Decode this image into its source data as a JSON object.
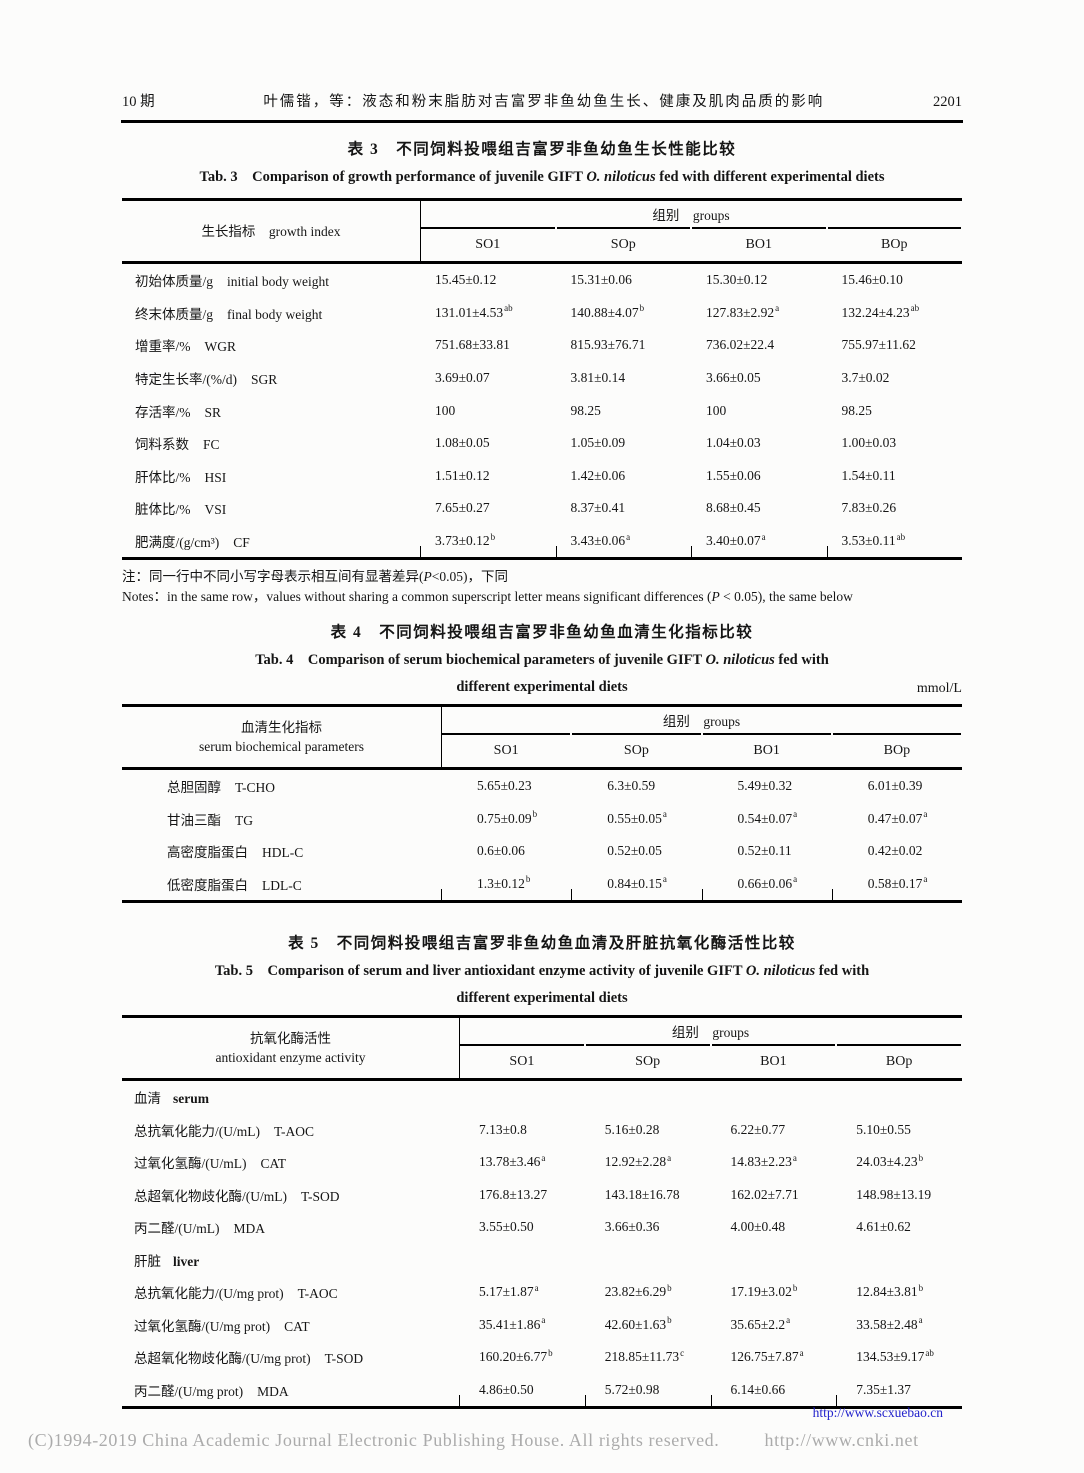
{
  "page_header": {
    "issue": "10 期",
    "title": "叶儒锴，等：液态和粉末脂肪对吉富罗非鱼幼鱼生长、健康及肌肉品质的影响",
    "page_no": "2201"
  },
  "tables": [
    {
      "title_zh": "表 3　不同饲料投喂组吉富罗非鱼幼鱼生长性能比较",
      "title_en_lines": [
        [
          {
            "t": "Tab. 3　Comparison of growth performance of juvenile GIFT "
          },
          {
            "t": "O. niloticus",
            "i": 1
          },
          {
            "t": " fed with different experimental diets"
          }
        ]
      ],
      "unit": "",
      "stub_lines": [
        "生长指标　growth index"
      ],
      "groups_label": "组别　groups",
      "columns": [
        "SO1",
        "SOp",
        "BO1",
        "BOp"
      ],
      "rows": [
        {
          "zh": "初始体质量/g",
          "en": "initial body weight",
          "cells": [
            {
              "v": "15.45±0.12"
            },
            {
              "v": "15.31±0.06"
            },
            {
              "v": "15.30±0.12"
            },
            {
              "v": "15.46±0.10"
            }
          ]
        },
        {
          "zh": "终末体质量/g",
          "en": "final body weight",
          "cells": [
            {
              "v": "131.01±4.53",
              "s": "ab"
            },
            {
              "v": "140.88±4.07",
              "s": "b"
            },
            {
              "v": "127.83±2.92",
              "s": "a"
            },
            {
              "v": "132.24±4.23",
              "s": "ab"
            }
          ]
        },
        {
          "zh": "增重率/%",
          "en": "WGR",
          "cells": [
            {
              "v": "751.68±33.81"
            },
            {
              "v": "815.93±76.71"
            },
            {
              "v": "736.02±22.4"
            },
            {
              "v": "755.97±11.62"
            }
          ]
        },
        {
          "zh": "特定生长率/(%/d)",
          "en": "SGR",
          "cells": [
            {
              "v": "3.69±0.07"
            },
            {
              "v": "3.81±0.14"
            },
            {
              "v": "3.66±0.05"
            },
            {
              "v": "3.7±0.02"
            }
          ]
        },
        {
          "zh": "存活率/%",
          "en": "SR",
          "cells": [
            {
              "v": "100"
            },
            {
              "v": "98.25"
            },
            {
              "v": "100"
            },
            {
              "v": "98.25"
            }
          ]
        },
        {
          "zh": "饲料系数",
          "en": "FC",
          "cells": [
            {
              "v": "1.08±0.05"
            },
            {
              "v": "1.05±0.09"
            },
            {
              "v": "1.04±0.03"
            },
            {
              "v": "1.00±0.03"
            }
          ]
        },
        {
          "zh": "肝体比/%",
          "en": "HSI",
          "cells": [
            {
              "v": "1.51±0.12"
            },
            {
              "v": "1.42±0.06"
            },
            {
              "v": "1.55±0.06"
            },
            {
              "v": "1.54±0.11"
            }
          ]
        },
        {
          "zh": "脏体比/%",
          "en": "VSI",
          "cells": [
            {
              "v": "7.65±0.27"
            },
            {
              "v": "8.37±0.41"
            },
            {
              "v": "8.68±0.45"
            },
            {
              "v": "7.83±0.26"
            }
          ]
        },
        {
          "zh": "肥满度/(g/cm³)",
          "en": "CF",
          "cells": [
            {
              "v": "3.73±0.12",
              "s": "b"
            },
            {
              "v": "3.43±0.06",
              "s": "a"
            },
            {
              "v": "3.40±0.07",
              "s": "a"
            },
            {
              "v": "3.53±0.11",
              "s": "ab"
            }
          ]
        }
      ],
      "notes": [
        [
          {
            "t": "注：同一行中不同小写字母表示相互间有显著差异("
          },
          {
            "t": "P",
            "i": 1
          },
          {
            "t": "<0.05)，下同"
          }
        ],
        [
          {
            "t": "Notes：in the same row，values without sharing a common superscript letter means significant differences ("
          },
          {
            "t": "P",
            "i": 1
          },
          {
            "t": " < 0.05), the same below"
          }
        ]
      ]
    },
    {
      "title_zh": "表 4　不同饲料投喂组吉富罗非鱼幼鱼血清生化指标比较",
      "title_en_lines": [
        [
          {
            "t": "Tab. 4　Comparison of serum biochemical parameters of juvenile GIFT "
          },
          {
            "t": "O. niloticus",
            "i": 1
          },
          {
            "t": " fed with"
          }
        ],
        [
          {
            "t": "different experimental diets"
          }
        ]
      ],
      "unit": "mmol/L",
      "stub_lines": [
        "血清生化指标",
        "serum biochemical parameters"
      ],
      "groups_label": "组别　groups",
      "columns": [
        "SO1",
        "SOp",
        "BO1",
        "BOp"
      ],
      "rows": [
        {
          "zh": "总胆固醇",
          "en": "T-CHO",
          "cells": [
            {
              "v": "5.65±0.23"
            },
            {
              "v": "6.3±0.59"
            },
            {
              "v": "5.49±0.32"
            },
            {
              "v": "6.01±0.39"
            }
          ]
        },
        {
          "zh": "甘油三酯",
          "en": "TG",
          "cells": [
            {
              "v": "0.75±0.09",
              "s": "b"
            },
            {
              "v": "0.55±0.05",
              "s": "a"
            },
            {
              "v": "0.54±0.07",
              "s": "a"
            },
            {
              "v": "0.47±0.07",
              "s": "a"
            }
          ]
        },
        {
          "zh": "高密度脂蛋白",
          "en": "HDL-C",
          "cells": [
            {
              "v": "0.6±0.06"
            },
            {
              "v": "0.52±0.05"
            },
            {
              "v": "0.52±0.11"
            },
            {
              "v": "0.42±0.02"
            }
          ]
        },
        {
          "zh": "低密度脂蛋白",
          "en": "LDL-C",
          "cells": [
            {
              "v": "1.3±0.12",
              "s": "b"
            },
            {
              "v": "0.84±0.15",
              "s": "a"
            },
            {
              "v": "0.66±0.06",
              "s": "a"
            },
            {
              "v": "0.58±0.17",
              "s": "a"
            }
          ]
        }
      ],
      "notes": null
    },
    {
      "title_zh": "表 5　不同饲料投喂组吉富罗非鱼幼鱼血清及肝脏抗氧化酶活性比较",
      "title_en_lines": [
        [
          {
            "t": "Tab. 5　Comparison of serum and liver antioxidant enzyme activity of juvenile GIFT "
          },
          {
            "t": "O. niloticus",
            "i": 1
          },
          {
            "t": " fed with"
          }
        ],
        [
          {
            "t": "different experimental diets"
          }
        ]
      ],
      "unit": "",
      "stub_lines": [
        "抗氧化酶活性",
        "antioxidant enzyme activity"
      ],
      "groups_label": "组别　groups",
      "columns": [
        "SO1",
        "SOp",
        "BO1",
        "BOp"
      ],
      "rows": [
        {
          "section": true,
          "zh": "血清",
          "en": "serum"
        },
        {
          "zh": "总抗氧化能力/(U/mL)",
          "en": "T-AOC",
          "cells": [
            {
              "v": "7.13±0.8"
            },
            {
              "v": "5.16±0.28"
            },
            {
              "v": "6.22±0.77"
            },
            {
              "v": "5.10±0.55"
            }
          ]
        },
        {
          "zh": "过氧化氢酶/(U/mL)",
          "en": "CAT",
          "cells": [
            {
              "v": "13.78±3.46",
              "s": "a"
            },
            {
              "v": "12.92±2.28",
              "s": "a"
            },
            {
              "v": "14.83±2.23",
              "s": "a"
            },
            {
              "v": "24.03±4.23",
              "s": "b"
            }
          ]
        },
        {
          "zh": "总超氧化物歧化酶/(U/mL)",
          "en": "T-SOD",
          "cells": [
            {
              "v": "176.8±13.27"
            },
            {
              "v": "143.18±16.78"
            },
            {
              "v": "162.02±7.71"
            },
            {
              "v": "148.98±13.19"
            }
          ]
        },
        {
          "zh": "丙二醛/(U/mL)",
          "en": "MDA",
          "cells": [
            {
              "v": "3.55±0.50"
            },
            {
              "v": "3.66±0.36"
            },
            {
              "v": "4.00±0.48"
            },
            {
              "v": "4.61±0.62"
            }
          ]
        },
        {
          "section": true,
          "zh": "肝脏",
          "en": "liver"
        },
        {
          "zh": "总抗氧化能力/(U/mg prot)",
          "en": "T-AOC",
          "cells": [
            {
              "v": "5.17±1.87",
              "s": "a"
            },
            {
              "v": "23.82±6.29",
              "s": "b"
            },
            {
              "v": "17.19±3.02",
              "s": "b"
            },
            {
              "v": "12.84±3.81",
              "s": "b"
            }
          ]
        },
        {
          "zh": "过氧化氢酶/(U/mg prot)",
          "en": "CAT",
          "cells": [
            {
              "v": "35.41±1.86",
              "s": "a"
            },
            {
              "v": "42.60±1.63",
              "s": "b"
            },
            {
              "v": "35.65±2.2",
              "s": "a"
            },
            {
              "v": "33.58±2.48",
              "s": "a"
            }
          ]
        },
        {
          "zh": "总超氧化物歧化酶/(U/mg prot)",
          "en": "T-SOD",
          "cells": [
            {
              "v": "160.20±6.77",
              "s": "b"
            },
            {
              "v": "218.85±11.73",
              "s": "c"
            },
            {
              "v": "126.75±7.87",
              "s": "a"
            },
            {
              "v": "134.53±9.17",
              "s": "ab"
            }
          ]
        },
        {
          "zh": "丙二醛/(U/mg prot)",
          "en": "MDA",
          "cells": [
            {
              "v": "4.86±0.50"
            },
            {
              "v": "5.72±0.98"
            },
            {
              "v": "6.14±0.66"
            },
            {
              "v": "7.35±1.37"
            }
          ]
        }
      ],
      "notes": null
    }
  ],
  "footer": {
    "journal_link": "http://www.scxuebao.cn",
    "link_color": "#2222cc",
    "copyright": "(C)1994-2019 China Academic Journal Electronic Publishing House. All rights reserved.",
    "cnki": "http://www.cnki.net",
    "copyright_color": "#ababab"
  }
}
